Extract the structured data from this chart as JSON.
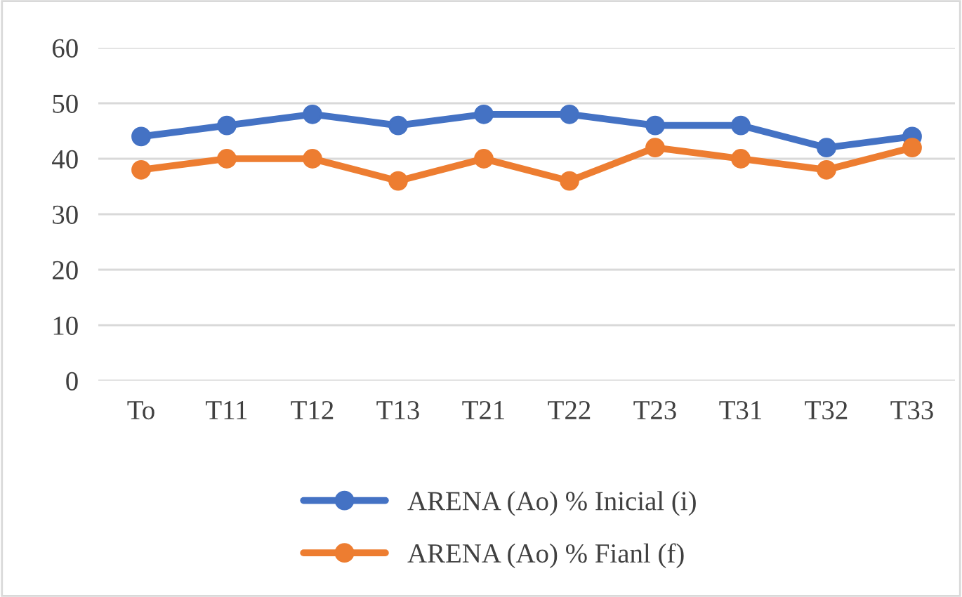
{
  "chart_data": {
    "type": "line",
    "categories": [
      "To",
      "T11",
      "T12",
      "T13",
      "T21",
      "T22",
      "T23",
      "T31",
      "T32",
      "T33"
    ],
    "series": [
      {
        "name": "ARENA (Ao) % Inicial (i)",
        "color": "#4472c4",
        "values": [
          44,
          46,
          48,
          46,
          48,
          48,
          46,
          46,
          42,
          44
        ]
      },
      {
        "name": "ARENA (Ao) % Fianl (f)",
        "color": "#ed7d31",
        "values": [
          38,
          40,
          40,
          36,
          40,
          36,
          42,
          40,
          38,
          42
        ]
      }
    ],
    "ylim": [
      0,
      60
    ],
    "yticks": [
      0,
      10,
      20,
      30,
      40,
      50,
      60
    ],
    "grid": "y",
    "legend": "bottom",
    "marker": "circle",
    "line_style": "solid"
  }
}
